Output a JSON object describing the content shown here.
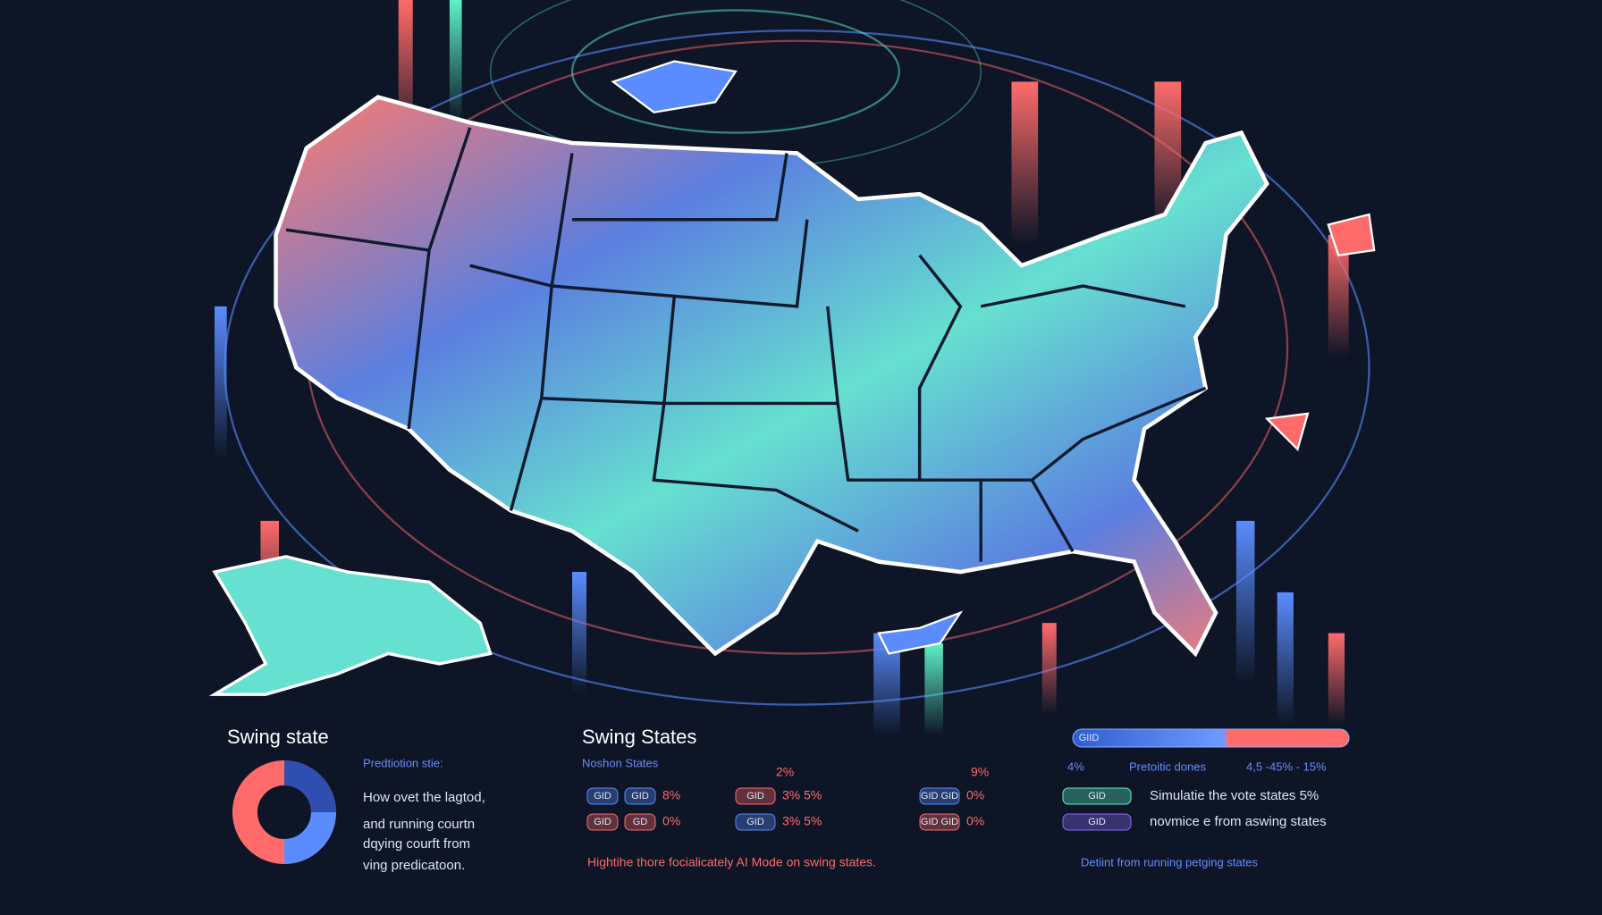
{
  "left": {
    "title": "Swing state",
    "subtitle": "Predtiotion stie:",
    "lines": [
      "How ovet the lagtod,",
      "and running courtn",
      "dqying courft from",
      "ving predicatoon."
    ]
  },
  "center": {
    "title": "Swing States",
    "subtitle": "Noshon States",
    "col_a": "2%",
    "col_b": "9%",
    "rows": [
      [
        [
          "GID",
          "GID",
          "8%"
        ],
        [
          "GID",
          "3% 5%"
        ],
        [
          "GID GID",
          "0%"
        ]
      ],
      [
        [
          "GID",
          "GD",
          "0%"
        ],
        [
          "GID",
          "3% 5%"
        ],
        [
          "GID GID",
          "0%"
        ]
      ]
    ],
    "footer": "Hightihe thore focialicately AI Mode on swing states."
  },
  "right": {
    "bar_label": "GIID",
    "low": "4%",
    "legend": "Pretoitic dones",
    "range": "4,5 -45% - 15%",
    "rows": [
      [
        "GID",
        "Simulatie the vote states 5%"
      ],
      [
        "GID",
        "novmice e from aswing states"
      ]
    ],
    "footer": "Detiint from running petging states"
  }
}
